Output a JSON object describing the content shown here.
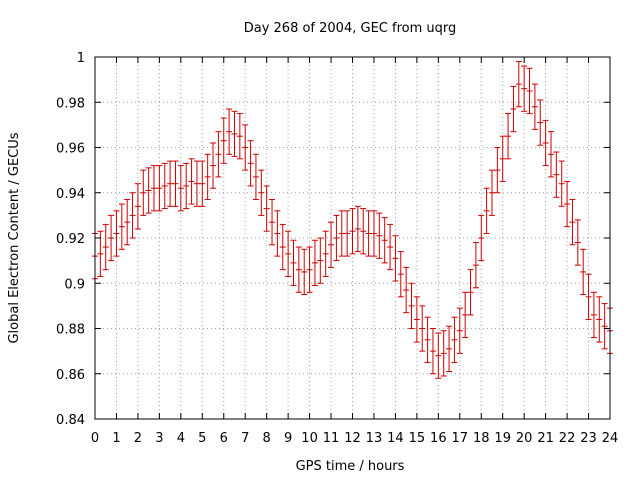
{
  "chart_data": {
    "type": "scatter",
    "title": "Day 268 of 2004, GEC from uqrg",
    "xlabel": "GPS time / hours",
    "ylabel": "Global Electron Content / GECUs",
    "xlim": [
      0,
      24
    ],
    "ylim": [
      0.84,
      1.0
    ],
    "xticks": [
      "0",
      "1",
      "2",
      "3",
      "4",
      "5",
      "6",
      "7",
      "8",
      "9",
      "10",
      "11",
      "12",
      "13",
      "14",
      "15",
      "16",
      "17",
      "18",
      "19",
      "20",
      "21",
      "22",
      "23",
      "24"
    ],
    "yticks": [
      "0.84",
      "0.86",
      "0.88",
      "0.9",
      "0.92",
      "0.94",
      "0.96",
      "0.98",
      "1"
    ],
    "grid": true,
    "legend": "none",
    "series": [
      {
        "style": "errorbars",
        "color": "#cc0000",
        "x": [
          0.0,
          0.25,
          0.5,
          0.75,
          1.0,
          1.25,
          1.5,
          1.75,
          2.0,
          2.25,
          2.5,
          2.75,
          3.0,
          3.25,
          3.5,
          3.75,
          4.0,
          4.25,
          4.5,
          4.75,
          5.0,
          5.25,
          5.5,
          5.75,
          6.0,
          6.25,
          6.5,
          6.75,
          7.0,
          7.25,
          7.5,
          7.75,
          8.0,
          8.25,
          8.5,
          8.75,
          9.0,
          9.25,
          9.5,
          9.75,
          10.0,
          10.25,
          10.5,
          10.75,
          11.0,
          11.25,
          11.5,
          11.75,
          12.0,
          12.25,
          12.5,
          12.75,
          13.0,
          13.25,
          13.5,
          13.75,
          14.0,
          14.25,
          14.5,
          14.75,
          15.0,
          15.25,
          15.5,
          15.75,
          16.0,
          16.25,
          16.5,
          16.75,
          17.0,
          17.25,
          17.5,
          17.75,
          18.0,
          18.25,
          18.5,
          18.75,
          19.0,
          19.25,
          19.5,
          19.75,
          20.0,
          20.25,
          20.5,
          20.75,
          21.0,
          21.25,
          21.5,
          21.75,
          22.0,
          22.25,
          22.5,
          22.75,
          23.0,
          23.25,
          23.5,
          23.75,
          24.0
        ],
        "y": [
          0.912,
          0.913,
          0.916,
          0.92,
          0.922,
          0.925,
          0.927,
          0.93,
          0.934,
          0.94,
          0.941,
          0.942,
          0.942,
          0.943,
          0.944,
          0.944,
          0.942,
          0.943,
          0.945,
          0.944,
          0.944,
          0.947,
          0.952,
          0.957,
          0.963,
          0.967,
          0.966,
          0.965,
          0.96,
          0.953,
          0.947,
          0.94,
          0.933,
          0.927,
          0.922,
          0.916,
          0.913,
          0.909,
          0.906,
          0.905,
          0.906,
          0.909,
          0.91,
          0.913,
          0.917,
          0.92,
          0.922,
          0.922,
          0.923,
          0.924,
          0.923,
          0.922,
          0.922,
          0.921,
          0.919,
          0.916,
          0.911,
          0.904,
          0.897,
          0.89,
          0.884,
          0.88,
          0.875,
          0.87,
          0.868,
          0.869,
          0.871,
          0.875,
          0.879,
          0.886,
          0.896,
          0.908,
          0.92,
          0.932,
          0.94,
          0.95,
          0.955,
          0.965,
          0.977,
          0.988,
          0.986,
          0.985,
          0.978,
          0.971,
          0.962,
          0.957,
          0.948,
          0.944,
          0.935,
          0.927,
          0.918,
          0.905,
          0.894,
          0.886,
          0.884,
          0.881,
          0.879
        ],
        "err": 0.01
      }
    ]
  }
}
